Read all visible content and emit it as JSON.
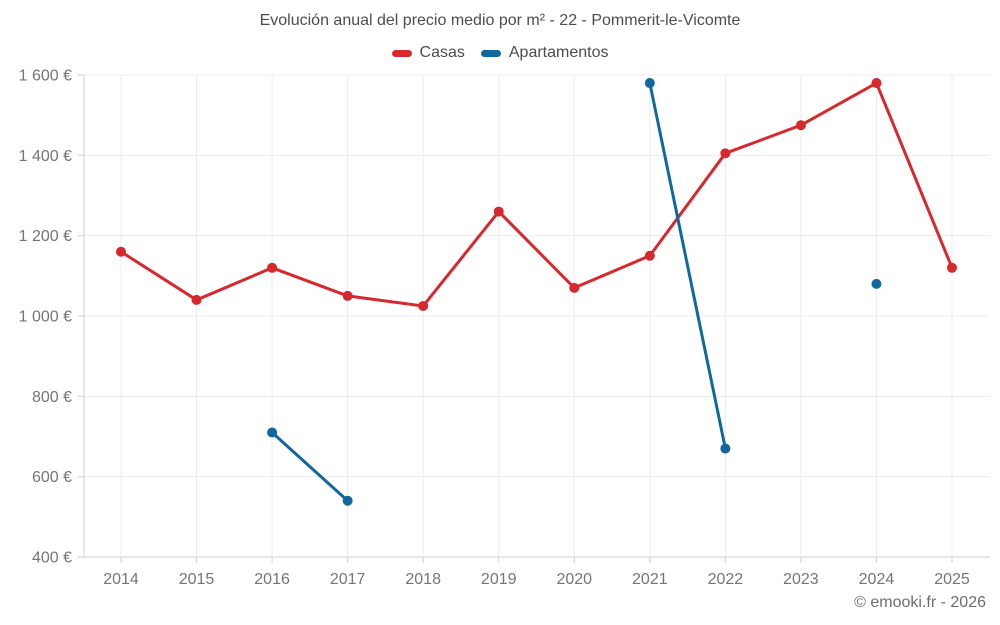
{
  "chart_data": {
    "type": "line",
    "title": "Evolución anual del precio medio por m² - 22 - Pommerit-le-Vicomte",
    "footer": "© emooki.fr - 2026",
    "categories": [
      "2014",
      "2015",
      "2016",
      "2017",
      "2018",
      "2019",
      "2020",
      "2021",
      "2022",
      "2023",
      "2024",
      "2025"
    ],
    "series": [
      {
        "name": "Casas",
        "color": "#d7292d",
        "values": [
          1160,
          1040,
          1120,
          1050,
          1025,
          1260,
          1070,
          1150,
          1405,
          1475,
          1580,
          1120
        ]
      },
      {
        "name": "Apartamentos",
        "color": "#10689e",
        "values": [
          null,
          null,
          710,
          540,
          null,
          null,
          null,
          1580,
          670,
          null,
          1080,
          null
        ]
      }
    ],
    "ylim": [
      400,
      1600
    ],
    "yticks": [
      {
        "value": 400,
        "label": "400 €"
      },
      {
        "value": 600,
        "label": "600 €"
      },
      {
        "value": 800,
        "label": "800 €"
      },
      {
        "value": 1000,
        "label": "1 000 €"
      },
      {
        "value": 1200,
        "label": "1 200 €"
      },
      {
        "value": 1400,
        "label": "1 400 €"
      },
      {
        "value": 1600,
        "label": "1 600 €"
      }
    ],
    "grid": true,
    "legend_position": "top",
    "colors": {
      "gridline": "#ececec",
      "axis": "#cfcfcf",
      "tick_text": "#757575",
      "title_text": "#4c4c4c"
    }
  }
}
